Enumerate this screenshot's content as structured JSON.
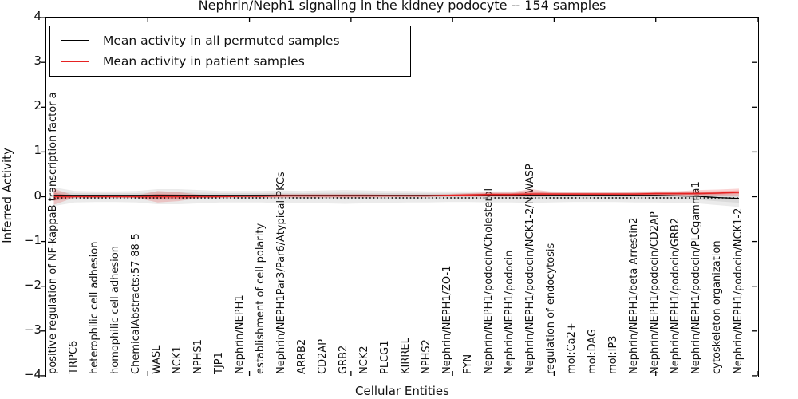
{
  "title": "Nephrin/Neph1 signaling in the kidney podocyte -- 154 samples",
  "axes": {
    "x_label": "Cellular Entities",
    "y_label": "Inferred Activity"
  },
  "legend": [
    {
      "label": "Mean activity in all permuted samples",
      "color": "#000000"
    },
    {
      "label": "Mean activity in patient samples",
      "color": "#e62222"
    }
  ],
  "chart_data": {
    "type": "line",
    "title": "Nephrin/Neph1 signaling in the kidney podocyte -- 154 samples",
    "xlabel": "Cellular Entities",
    "ylabel": "Inferred Activity",
    "ylim": [
      -4,
      4
    ],
    "xlim": [
      0,
      35
    ],
    "y_ticks": [
      4,
      3,
      2,
      1,
      0,
      -1,
      -2,
      -3,
      -4
    ],
    "x_major_tick_values": [
      5,
      10,
      15,
      20,
      25,
      30,
      35
    ],
    "grid": false,
    "legend_position": "upper left",
    "categories": [
      "positive regulation of NF-kappaB transcription factor a",
      "TRPC6",
      "heterophilic cell adhesion",
      "homophilic cell adhesion",
      "ChemicalAbstracts:57-88-5",
      "WASL",
      "NCK1",
      "NPHS1",
      "TJP1",
      "Nephrin/NEPH1",
      "establishment of cell polarity",
      "Nephrin/NEPH1Par3/Par6/Atypical PKCs",
      "ARRB2",
      "CD2AP",
      "GRB2",
      "NCK2",
      "PLCG1",
      "KIRREL",
      "NPHS2",
      "Nephrin/NEPH1/ZO-1",
      "FYN",
      "Nephrin/NEPH1/podocin/Cholesterol",
      "Nephrin/NEPH1/podocin",
      "Nephrin/NEPH1/podocin/NCK1-2/N-WASP",
      "regulation of endocytosis",
      "mol:Ca2+",
      "mol:DAG",
      "mol:IP3",
      "Nephrin/NEPH1/beta Arrestin2",
      "Nephrin/NEPH1/podocin/CD2AP",
      "Nephrin/NEPH1/podocin/GRB2",
      "Nephrin/NEPH1/podocin/PLCgamma1",
      "cytoskeleton organization",
      "Nephrin/NEPH1/podocin/NCK1-2"
    ],
    "series": [
      {
        "name": "Mean activity in all permuted samples",
        "color": "#000000",
        "width": 1.3,
        "values": [
          0.03,
          0.03,
          0.03,
          0.03,
          0.03,
          0.03,
          0.03,
          0.03,
          0.03,
          0.03,
          0.03,
          0.03,
          0.03,
          0.03,
          0.03,
          0.03,
          0.03,
          0.03,
          0.03,
          0.03,
          0.03,
          0.03,
          0.03,
          0.03,
          0.03,
          0.03,
          0.03,
          0.03,
          0.03,
          0.03,
          0.02,
          0.01,
          -0.02,
          -0.04
        ]
      },
      {
        "name": "Mean activity in patient samples",
        "color": "#e62222",
        "width": 1.6,
        "values": [
          0.0,
          0.0,
          0.0,
          0.0,
          0.0,
          0.0,
          0.0,
          0.0,
          0.0,
          0.01,
          0.01,
          0.02,
          0.02,
          0.02,
          0.02,
          0.02,
          0.02,
          0.02,
          0.02,
          0.03,
          0.04,
          0.05,
          0.05,
          0.06,
          0.06,
          0.06,
          0.06,
          0.06,
          0.06,
          0.07,
          0.07,
          0.07,
          0.08,
          0.1
        ]
      }
    ],
    "bands": [
      {
        "name": "permuted-samples-range",
        "series_ref": 0,
        "color": "#808080",
        "opacity_outer": 0.16,
        "opacity_inner": 0.16,
        "upper": [
          0.21,
          0.13,
          0.12,
          0.12,
          0.13,
          0.17,
          0.17,
          0.15,
          0.13,
          0.13,
          0.13,
          0.14,
          0.13,
          0.14,
          0.15,
          0.14,
          0.13,
          0.13,
          0.12,
          0.12,
          0.12,
          0.12,
          0.12,
          0.13,
          0.12,
          0.11,
          0.11,
          0.11,
          0.12,
          0.12,
          0.12,
          0.12,
          0.12,
          0.11
        ],
        "lower": [
          -0.21,
          -0.13,
          -0.12,
          -0.12,
          -0.13,
          -0.17,
          -0.17,
          -0.15,
          -0.13,
          -0.13,
          -0.13,
          -0.15,
          -0.14,
          -0.15,
          -0.16,
          -0.15,
          -0.14,
          -0.13,
          -0.13,
          -0.12,
          -0.12,
          -0.13,
          -0.13,
          -0.14,
          -0.13,
          -0.12,
          -0.12,
          -0.12,
          -0.13,
          -0.13,
          -0.14,
          -0.15,
          -0.19,
          -0.23
        ]
      },
      {
        "name": "patient-samples-range",
        "series_ref": 1,
        "color": "#e62222",
        "opacity_outer": 0.2,
        "opacity_inner": 0.28,
        "upper": [
          0.18,
          0.02,
          0.02,
          0.02,
          0.03,
          0.13,
          0.1,
          0.05,
          0.03,
          0.04,
          0.05,
          0.06,
          0.06,
          0.06,
          0.06,
          0.06,
          0.05,
          0.05,
          0.05,
          0.06,
          0.08,
          0.1,
          0.1,
          0.17,
          0.11,
          0.1,
          0.1,
          0.1,
          0.11,
          0.12,
          0.12,
          0.15,
          0.16,
          0.18
        ],
        "lower": [
          -0.18,
          -0.02,
          -0.02,
          -0.02,
          -0.03,
          -0.13,
          -0.1,
          -0.03,
          -0.02,
          -0.02,
          -0.02,
          -0.02,
          -0.02,
          -0.02,
          -0.02,
          -0.02,
          -0.01,
          -0.01,
          -0.01,
          0.0,
          0.0,
          0.0,
          0.0,
          0.0,
          0.01,
          0.01,
          0.01,
          0.01,
          0.01,
          0.02,
          0.02,
          0.02,
          0.02,
          0.02
        ]
      }
    ],
    "zero_line": {
      "y": 0,
      "style": "dotted",
      "color": "#000000"
    }
  }
}
